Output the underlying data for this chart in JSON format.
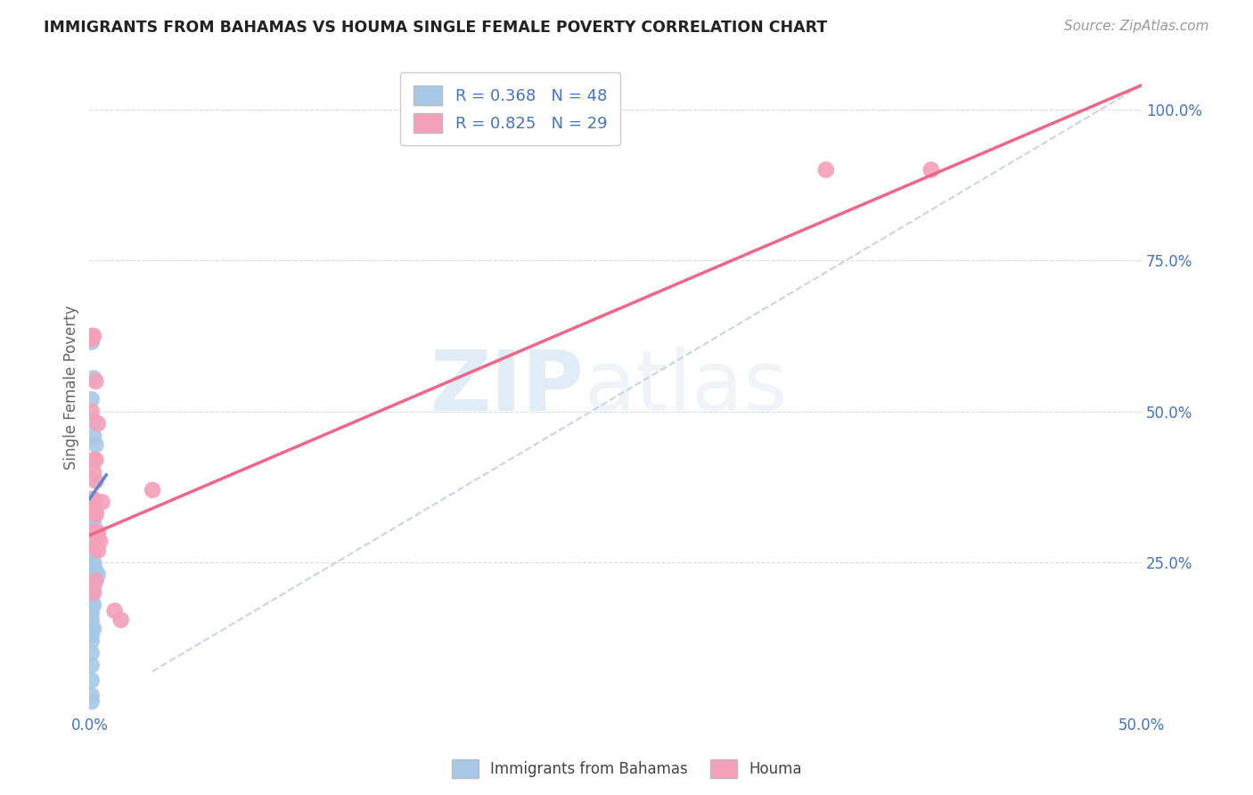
{
  "title": "IMMIGRANTS FROM BAHAMAS VS HOUMA SINGLE FEMALE POVERTY CORRELATION CHART",
  "source": "Source: ZipAtlas.com",
  "ylabel_label": "Single Female Poverty",
  "x_min": 0.0,
  "x_max": 0.5,
  "y_min": 0.0,
  "y_max": 1.08,
  "x_ticks": [
    0.0,
    0.1,
    0.2,
    0.3,
    0.4,
    0.5
  ],
  "x_tick_labels": [
    "0.0%",
    "",
    "",
    "",
    "",
    "50.0%"
  ],
  "y_ticks": [
    0.25,
    0.5,
    0.75,
    1.0
  ],
  "y_tick_labels": [
    "25.0%",
    "50.0%",
    "75.0%",
    "100.0%"
  ],
  "blue_R": 0.368,
  "blue_N": 48,
  "pink_R": 0.825,
  "pink_N": 29,
  "blue_color": "#a8c8e8",
  "pink_color": "#f4a0b8",
  "blue_line_color": "#5588cc",
  "pink_line_color": "#ee6688",
  "dashed_line_color": "#c8d4e4",
  "watermark_zip": "ZIP",
  "watermark_atlas": "atlas",
  "legend_label_blue": "Immigrants from Bahamas",
  "legend_label_pink": "Houma",
  "blue_scatter_x": [
    0.001,
    0.001,
    0.002,
    0.001,
    0.002,
    0.002,
    0.003,
    0.001,
    0.001,
    0.002,
    0.001,
    0.002,
    0.001,
    0.002,
    0.001,
    0.001,
    0.002,
    0.003,
    0.001,
    0.002,
    0.001,
    0.001,
    0.002,
    0.002,
    0.001,
    0.002,
    0.003,
    0.004,
    0.001,
    0.001,
    0.001,
    0.002,
    0.001,
    0.001,
    0.001,
    0.002,
    0.001,
    0.001,
    0.001,
    0.001,
    0.002,
    0.001,
    0.001,
    0.001,
    0.001,
    0.001,
    0.001,
    0.001
  ],
  "blue_scatter_y": [
    0.625,
    0.615,
    0.555,
    0.52,
    0.485,
    0.46,
    0.445,
    0.39,
    0.355,
    0.345,
    0.325,
    0.315,
    0.305,
    0.3,
    0.295,
    0.285,
    0.28,
    0.275,
    0.27,
    0.265,
    0.26,
    0.255,
    0.25,
    0.245,
    0.24,
    0.238,
    0.235,
    0.23,
    0.225,
    0.22,
    0.215,
    0.21,
    0.205,
    0.195,
    0.185,
    0.18,
    0.175,
    0.165,
    0.155,
    0.145,
    0.14,
    0.13,
    0.12,
    0.1,
    0.08,
    0.055,
    0.03,
    0.02
  ],
  "pink_scatter_x": [
    0.001,
    0.001,
    0.002,
    0.002,
    0.003,
    0.003,
    0.002,
    0.003,
    0.002,
    0.003,
    0.003,
    0.004,
    0.004,
    0.005,
    0.006,
    0.003,
    0.002,
    0.004,
    0.015,
    0.003,
    0.002,
    0.003,
    0.004,
    0.03,
    0.002,
    0.003,
    0.35,
    0.4,
    0.012
  ],
  "pink_scatter_y": [
    0.62,
    0.5,
    0.625,
    0.42,
    0.55,
    0.42,
    0.4,
    0.385,
    0.355,
    0.335,
    0.33,
    0.3,
    0.295,
    0.285,
    0.35,
    0.22,
    0.2,
    0.48,
    0.155,
    0.275,
    0.3,
    0.275,
    0.27,
    0.37,
    0.35,
    0.33,
    0.9,
    0.9,
    0.17
  ],
  "blue_line_x0": 0.0,
  "blue_line_x1": 0.008,
  "blue_line_y0": 0.355,
  "blue_line_y1": 0.395,
  "pink_line_x0": 0.0,
  "pink_line_x1": 0.5,
  "pink_line_y0": 0.295,
  "pink_line_y1": 1.04,
  "dash_line_x0": 0.03,
  "dash_line_x1": 0.5,
  "dash_line_y0": 0.07,
  "dash_line_y1": 1.04
}
